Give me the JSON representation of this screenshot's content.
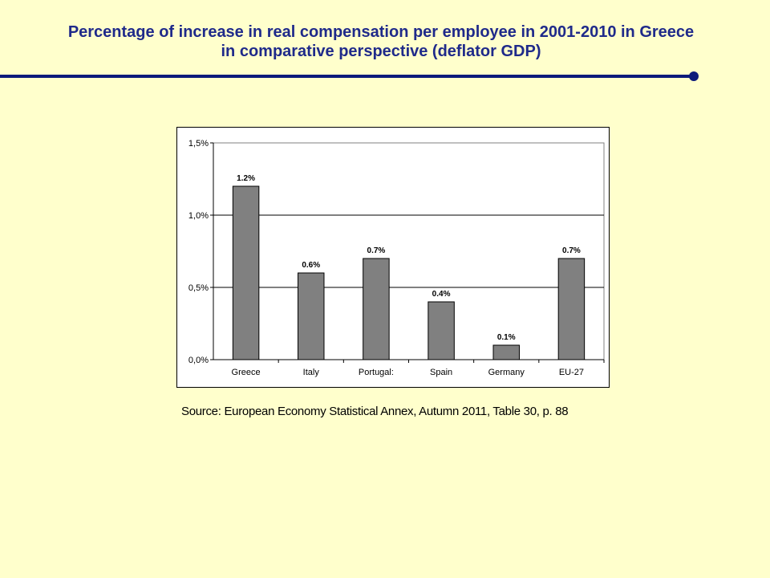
{
  "slide": {
    "title_line1": "Percentage of increase in real compensation per employee in 2001-2010 in Greece",
    "title_line2": "in comparative perspective (deflator GDP)",
    "source": "Source: European Economy Statistical Annex, Autumn 2011, Table 30, p. 88"
  },
  "colors": {
    "background": "#ffffcc",
    "title": "#1f2a8a",
    "rule": "#0c1a7a",
    "bar": "#808080"
  },
  "chart_data": {
    "type": "bar",
    "categories": [
      "Greece",
      "Italy",
      "Portugal:",
      "Spain",
      "Germany",
      "EU-27"
    ],
    "values": [
      1.2,
      0.6,
      0.7,
      0.4,
      0.1,
      0.7
    ],
    "value_labels": [
      "1.2%",
      "0.6%",
      "0.7%",
      "0.4%",
      "0.1%",
      "0.7%"
    ],
    "yticks": [
      0.0,
      0.5,
      1.0,
      1.5
    ],
    "ytick_labels": [
      "0,0%",
      "0,5%",
      "1,0%",
      "1,5%"
    ],
    "ylim": [
      0,
      1.5
    ],
    "grid": true,
    "legend": "none",
    "title": "",
    "xlabel": "",
    "ylabel": ""
  }
}
